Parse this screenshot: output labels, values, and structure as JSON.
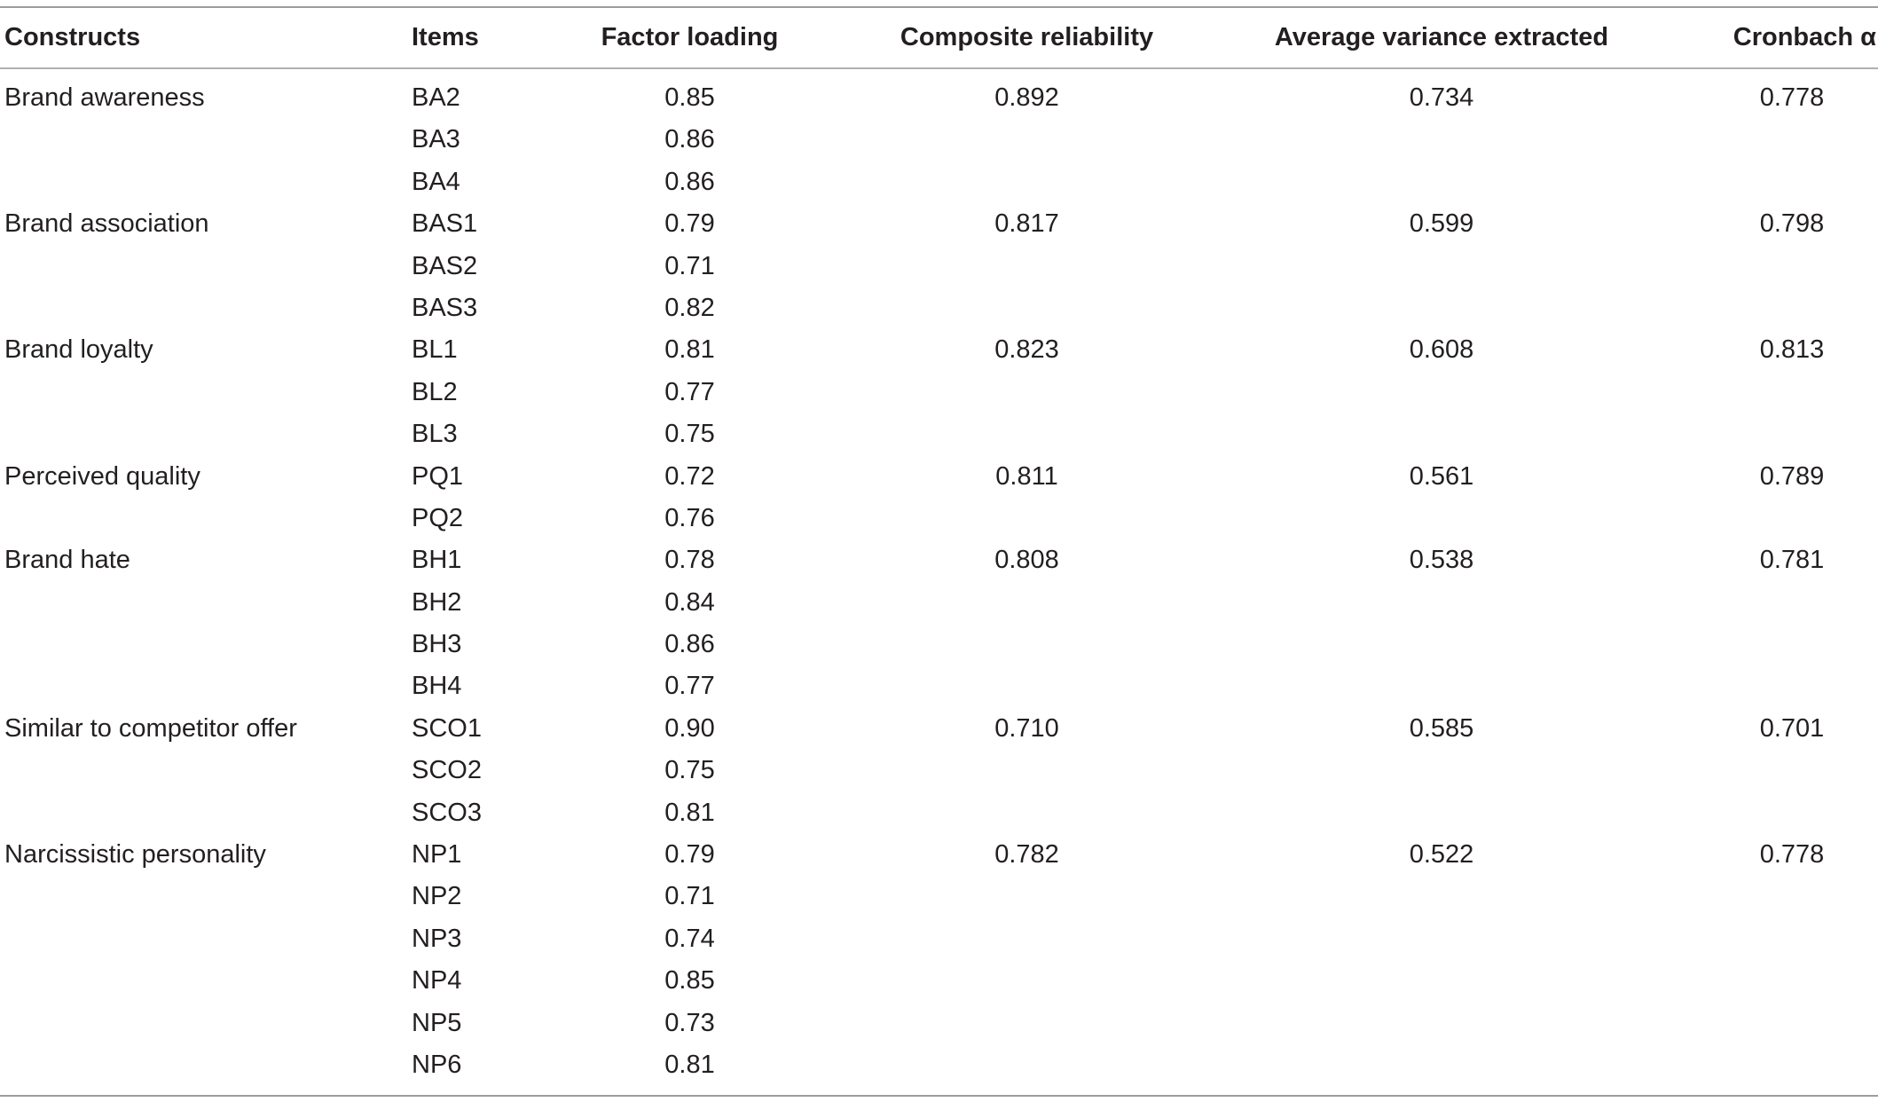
{
  "table": {
    "headers": {
      "constructs": "Constructs",
      "items": "Items",
      "factor_loading": "Factor loading",
      "composite_reliability": "Composite reliability",
      "ave": "Average variance extracted",
      "cronbach": "Cronbach α"
    },
    "rows": [
      {
        "construct": "Brand awareness",
        "item": "BA2",
        "loading": "0.85",
        "cr": "0.892",
        "ave": "0.734",
        "alpha": "0.778"
      },
      {
        "construct": "",
        "item": "BA3",
        "loading": "0.86",
        "cr": "",
        "ave": "",
        "alpha": ""
      },
      {
        "construct": "",
        "item": "BA4",
        "loading": "0.86",
        "cr": "",
        "ave": "",
        "alpha": ""
      },
      {
        "construct": "Brand association",
        "item": "BAS1",
        "loading": "0.79",
        "cr": "0.817",
        "ave": "0.599",
        "alpha": "0.798"
      },
      {
        "construct": "",
        "item": "BAS2",
        "loading": "0.71",
        "cr": "",
        "ave": "",
        "alpha": ""
      },
      {
        "construct": "",
        "item": "BAS3",
        "loading": "0.82",
        "cr": "",
        "ave": "",
        "alpha": ""
      },
      {
        "construct": "Brand loyalty",
        "item": "BL1",
        "loading": "0.81",
        "cr": "0.823",
        "ave": "0.608",
        "alpha": "0.813"
      },
      {
        "construct": "",
        "item": "BL2",
        "loading": "0.77",
        "cr": "",
        "ave": "",
        "alpha": ""
      },
      {
        "construct": "",
        "item": "BL3",
        "loading": "0.75",
        "cr": "",
        "ave": "",
        "alpha": ""
      },
      {
        "construct": "Perceived quality",
        "item": "PQ1",
        "loading": "0.72",
        "cr": "0.811",
        "ave": "0.561",
        "alpha": "0.789"
      },
      {
        "construct": "",
        "item": "PQ2",
        "loading": "0.76",
        "cr": "",
        "ave": "",
        "alpha": ""
      },
      {
        "construct": "Brand hate",
        "item": "BH1",
        "loading": "0.78",
        "cr": "0.808",
        "ave": "0.538",
        "alpha": "0.781"
      },
      {
        "construct": "",
        "item": "BH2",
        "loading": "0.84",
        "cr": "",
        "ave": "",
        "alpha": ""
      },
      {
        "construct": "",
        "item": "BH3",
        "loading": "0.86",
        "cr": "",
        "ave": "",
        "alpha": ""
      },
      {
        "construct": "",
        "item": "BH4",
        "loading": "0.77",
        "cr": "",
        "ave": "",
        "alpha": ""
      },
      {
        "construct": "Similar to competitor offer",
        "item": "SCO1",
        "loading": "0.90",
        "cr": "0.710",
        "ave": "0.585",
        "alpha": "0.701"
      },
      {
        "construct": "",
        "item": "SCO2",
        "loading": "0.75",
        "cr": "",
        "ave": "",
        "alpha": ""
      },
      {
        "construct": "",
        "item": "SCO3",
        "loading": "0.81",
        "cr": "",
        "ave": "",
        "alpha": ""
      },
      {
        "construct": "Narcissistic personality",
        "item": "NP1",
        "loading": "0.79",
        "cr": "0.782",
        "ave": "0.522",
        "alpha": "0.778"
      },
      {
        "construct": "",
        "item": "NP2",
        "loading": "0.71",
        "cr": "",
        "ave": "",
        "alpha": ""
      },
      {
        "construct": "",
        "item": "NP3",
        "loading": "0.74",
        "cr": "",
        "ave": "",
        "alpha": ""
      },
      {
        "construct": "",
        "item": "NP4",
        "loading": "0.85",
        "cr": "",
        "ave": "",
        "alpha": ""
      },
      {
        "construct": "",
        "item": "NP5",
        "loading": "0.73",
        "cr": "",
        "ave": "",
        "alpha": ""
      },
      {
        "construct": "",
        "item": "NP6",
        "loading": "0.81",
        "cr": "",
        "ave": "",
        "alpha": ""
      }
    ]
  }
}
